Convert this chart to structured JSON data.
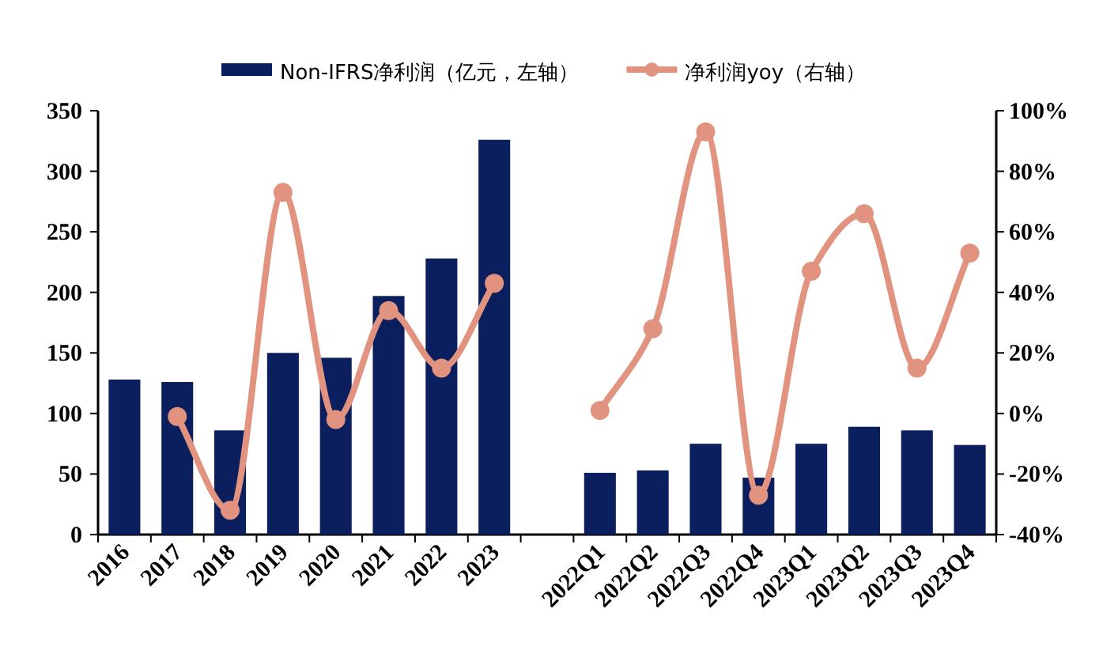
{
  "chart_data": {
    "type": "bar",
    "categories": [
      "2016",
      "2017",
      "2018",
      "2019",
      "2020",
      "2021",
      "2022",
      "2023",
      null,
      "2022Q1",
      "2022Q2",
      "2022Q3",
      "2022Q4",
      "2023Q1",
      "2023Q2",
      "2023Q3",
      "2023Q4"
    ],
    "series": [
      {
        "name": "Non-IFRS净利润（亿元，左轴）",
        "color": "#0b1f5e",
        "values": [
          128,
          126,
          86,
          150,
          146,
          197,
          228,
          326,
          null,
          51,
          53,
          75,
          47,
          75,
          89,
          86,
          74
        ]
      },
      {
        "name": "净利润yoy（右轴）",
        "type": "line",
        "axis": "y2",
        "color": "#e2937f",
        "marker": "circle",
        "values": [
          null,
          -1,
          -32,
          73,
          -2,
          34,
          15,
          43,
          null,
          1,
          28,
          93,
          -27,
          47,
          66,
          15,
          53
        ]
      }
    ],
    "ylim": [
      0,
      350
    ],
    "yticks": [
      0,
      50,
      100,
      150,
      200,
      250,
      300,
      350
    ],
    "y2lim": [
      -40,
      100
    ],
    "y2ticks": [
      {
        "value": -40,
        "label": "-40%"
      },
      {
        "value": -20,
        "label": "-20%"
      },
      {
        "value": 0,
        "label": "0%"
      },
      {
        "value": 20,
        "label": "20%"
      },
      {
        "value": 40,
        "label": "40%"
      },
      {
        "value": 60,
        "label": "60%"
      },
      {
        "value": 80,
        "label": "80%"
      },
      {
        "value": 100,
        "label": "100%"
      }
    ],
    "grid": false,
    "legend": "top"
  }
}
